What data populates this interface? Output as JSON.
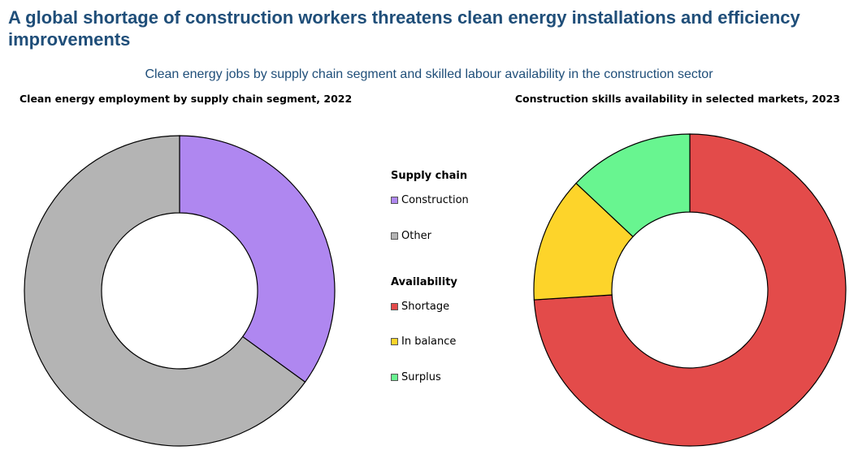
{
  "title": "A global shortage of construction workers threatens clean energy installations and efficiency improvements",
  "subtitle": "Clean energy jobs by supply chain segment and skilled labour availability in the construction sector",
  "legend": {
    "supply_chain_heading": "Supply chain",
    "availability_heading": "Availability",
    "items": [
      {
        "label": "Construction",
        "color": "#AF87F0"
      },
      {
        "label": "Other",
        "color": "#B4B4B4"
      },
      {
        "label": "Shortage",
        "color": "#E34B4A"
      },
      {
        "label": "In balance",
        "color": "#FDD42A"
      },
      {
        "label": "Surplus",
        "color": "#68F590"
      }
    ]
  },
  "chart_data": [
    {
      "type": "pie",
      "title": "Clean energy employment by supply chain segment, 2022",
      "categories": [
        "Construction",
        "Other"
      ],
      "values": [
        35,
        65
      ],
      "colors": [
        "#AF87F0",
        "#B4B4B4"
      ]
    },
    {
      "type": "pie",
      "title": "Construction skills availability in selected markets, 2023",
      "categories": [
        "Shortage",
        "In balance",
        "Surplus"
      ],
      "values": [
        74,
        13,
        13
      ],
      "colors": [
        "#E34B4A",
        "#FDD42A",
        "#68F590"
      ]
    }
  ]
}
